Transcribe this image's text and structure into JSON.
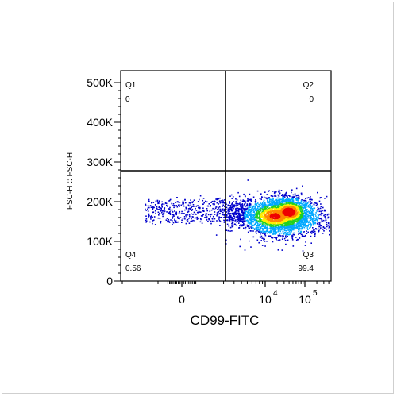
{
  "chart_data": {
    "type": "scatter",
    "xlabel": "CD99-FITC",
    "ylabel": "FSC-H :: FSC-H",
    "y_ticks": [
      {
        "label": "0",
        "value": 0
      },
      {
        "label": "100K",
        "value": 100000
      },
      {
        "label": "200K",
        "value": 200000
      },
      {
        "label": "300K",
        "value": 300000
      },
      {
        "label": "400K",
        "value": 400000
      },
      {
        "label": "500K",
        "value": 500000
      }
    ],
    "ylim": [
      0,
      530000
    ],
    "x_scale": "biexponential",
    "x_tick_labels": [
      {
        "base": "0",
        "exp": ""
      },
      {
        "base": "10",
        "exp": "4"
      },
      {
        "base": "10",
        "exp": "5"
      }
    ],
    "quadrant_gate": {
      "x_threshold": 1500,
      "y_threshold": 275000
    },
    "quadrants": [
      {
        "name": "Q1",
        "value": "0"
      },
      {
        "name": "Q2",
        "value": "0"
      },
      {
        "name": "Q3",
        "value": "99.4"
      },
      {
        "name": "Q4",
        "value": "0.56"
      }
    ],
    "populations": [
      {
        "x_center": 17000,
        "y_center": 165000,
        "note": "dense cluster"
      },
      {
        "x_center": 38000,
        "y_center": 175000,
        "note": "densest cluster"
      }
    ],
    "density_colors": [
      "#0000cc",
      "#00a8ff",
      "#22d022",
      "#ffee00",
      "#ff8800",
      "#ee0000"
    ]
  }
}
